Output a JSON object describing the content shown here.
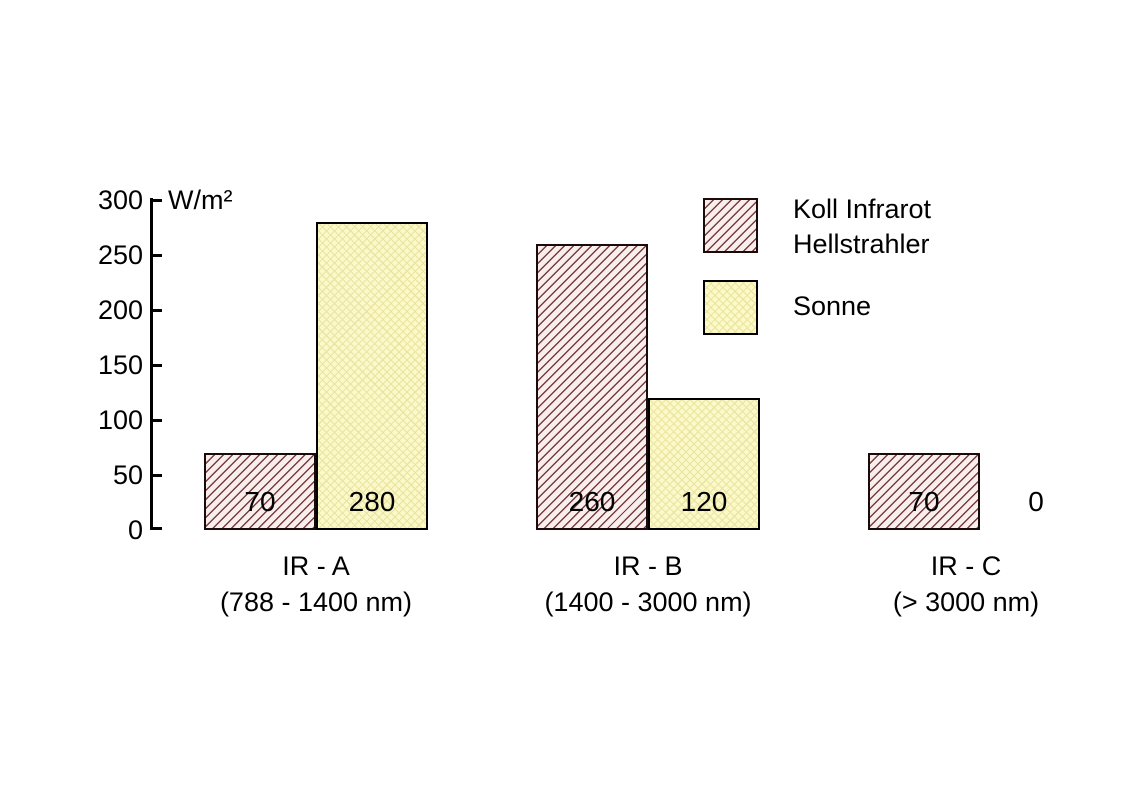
{
  "page": {
    "background": "#ffffff"
  },
  "y_axis": {
    "unit_label": "W/m²",
    "ticks": [
      300,
      250,
      200,
      150,
      100,
      50,
      0
    ]
  },
  "legend": {
    "items": [
      {
        "name": "Koll Infrarot Hellstrahler",
        "lines": [
          "Koll Infrarot",
          "Hellstrahler"
        ],
        "swatch": "red-diagonal-hatch"
      },
      {
        "name": "Sonne",
        "lines": [
          "Sonne"
        ],
        "swatch": "yellow-crosshatch"
      }
    ]
  },
  "chart_data": {
    "type": "bar",
    "categories": [
      "IR - A",
      "IR - B",
      "IR - C"
    ],
    "category_sublabels": [
      "(788 - 1400 nm)",
      "(1400 - 3000 nm)",
      "(> 3000 nm)"
    ],
    "series": [
      {
        "name": "Koll Infrarot Hellstrahler",
        "values": [
          70,
          260,
          70
        ],
        "fill": "#f8eeee",
        "hatch": "#7a3b3b",
        "border": "#1a0a0a",
        "pattern": "diagonal-hatch"
      },
      {
        "name": "Sonne",
        "values": [
          280,
          120,
          0
        ],
        "fill": "#fbf8c9",
        "hatch": "#ebe4a0",
        "border": "#000000",
        "pattern": "light-crosshatch"
      }
    ],
    "ylabel": "W/m²",
    "ylim": [
      0,
      300
    ],
    "y_tick_step": 50,
    "grid": false,
    "legend_position": "top-right",
    "value_labels_shown": true
  }
}
